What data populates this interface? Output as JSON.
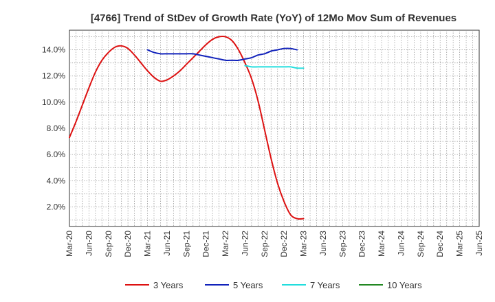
{
  "chart_data": {
    "type": "line",
    "title": "[4766]  Trend of StDev of Growth Rate (YoY) of 12Mo Mov Sum of Revenues",
    "xlabel": "",
    "ylabel": "",
    "ylim": [
      0.5,
      15.5
    ],
    "y_ticks": [
      2.0,
      4.0,
      6.0,
      8.0,
      10.0,
      12.0,
      14.0
    ],
    "y_tick_labels": [
      "2.0%",
      "4.0%",
      "6.0%",
      "8.0%",
      "10.0%",
      "12.0%",
      "14.0%"
    ],
    "x_tick_labels": [
      "Mar-20",
      "Jun-20",
      "Sep-20",
      "Dec-20",
      "Mar-21",
      "Jun-21",
      "Sep-21",
      "Dec-21",
      "Mar-22",
      "Jun-22",
      "Sep-22",
      "Dec-22",
      "Mar-23",
      "Jun-23",
      "Sep-23",
      "Dec-23",
      "Mar-24",
      "Jun-24",
      "Sep-24",
      "Dec-24",
      "Mar-25",
      "Jun-25"
    ],
    "grid": true,
    "legend_position": "bottom",
    "series": [
      {
        "name": "3 Years",
        "color": "#dd1111",
        "start_index": 0,
        "values": [
          7.3,
          8.5,
          9.8,
          11.1,
          12.3,
          13.2,
          13.8,
          14.2,
          14.3,
          14.1,
          13.6,
          13.0,
          12.4,
          11.9,
          11.6,
          11.7,
          12.0,
          12.4,
          12.9,
          13.4,
          13.9,
          14.4,
          14.8,
          15.0,
          15.0,
          14.7,
          14.0,
          13.0,
          11.8,
          10.1,
          7.9,
          5.7,
          3.8,
          2.4,
          1.4,
          1.1,
          1.1
        ]
      },
      {
        "name": "5 Years",
        "color": "#1122bb",
        "start_index": 12,
        "values": [
          14.0,
          13.8,
          13.7,
          13.7,
          13.7,
          13.7,
          13.7,
          13.7,
          13.6,
          13.5,
          13.4,
          13.3,
          13.2,
          13.2,
          13.2,
          13.3,
          13.4,
          13.6,
          13.7,
          13.9,
          14.0,
          14.1,
          14.1,
          14.0
        ]
      },
      {
        "name": "7 Years",
        "color": "#22dddd",
        "start_index": 27,
        "values": [
          12.8,
          12.7,
          12.7,
          12.7,
          12.7,
          12.7,
          12.7,
          12.7,
          12.6,
          12.6
        ]
      },
      {
        "name": "10 Years",
        "color": "#228822",
        "start_index": 0,
        "values": []
      }
    ]
  }
}
